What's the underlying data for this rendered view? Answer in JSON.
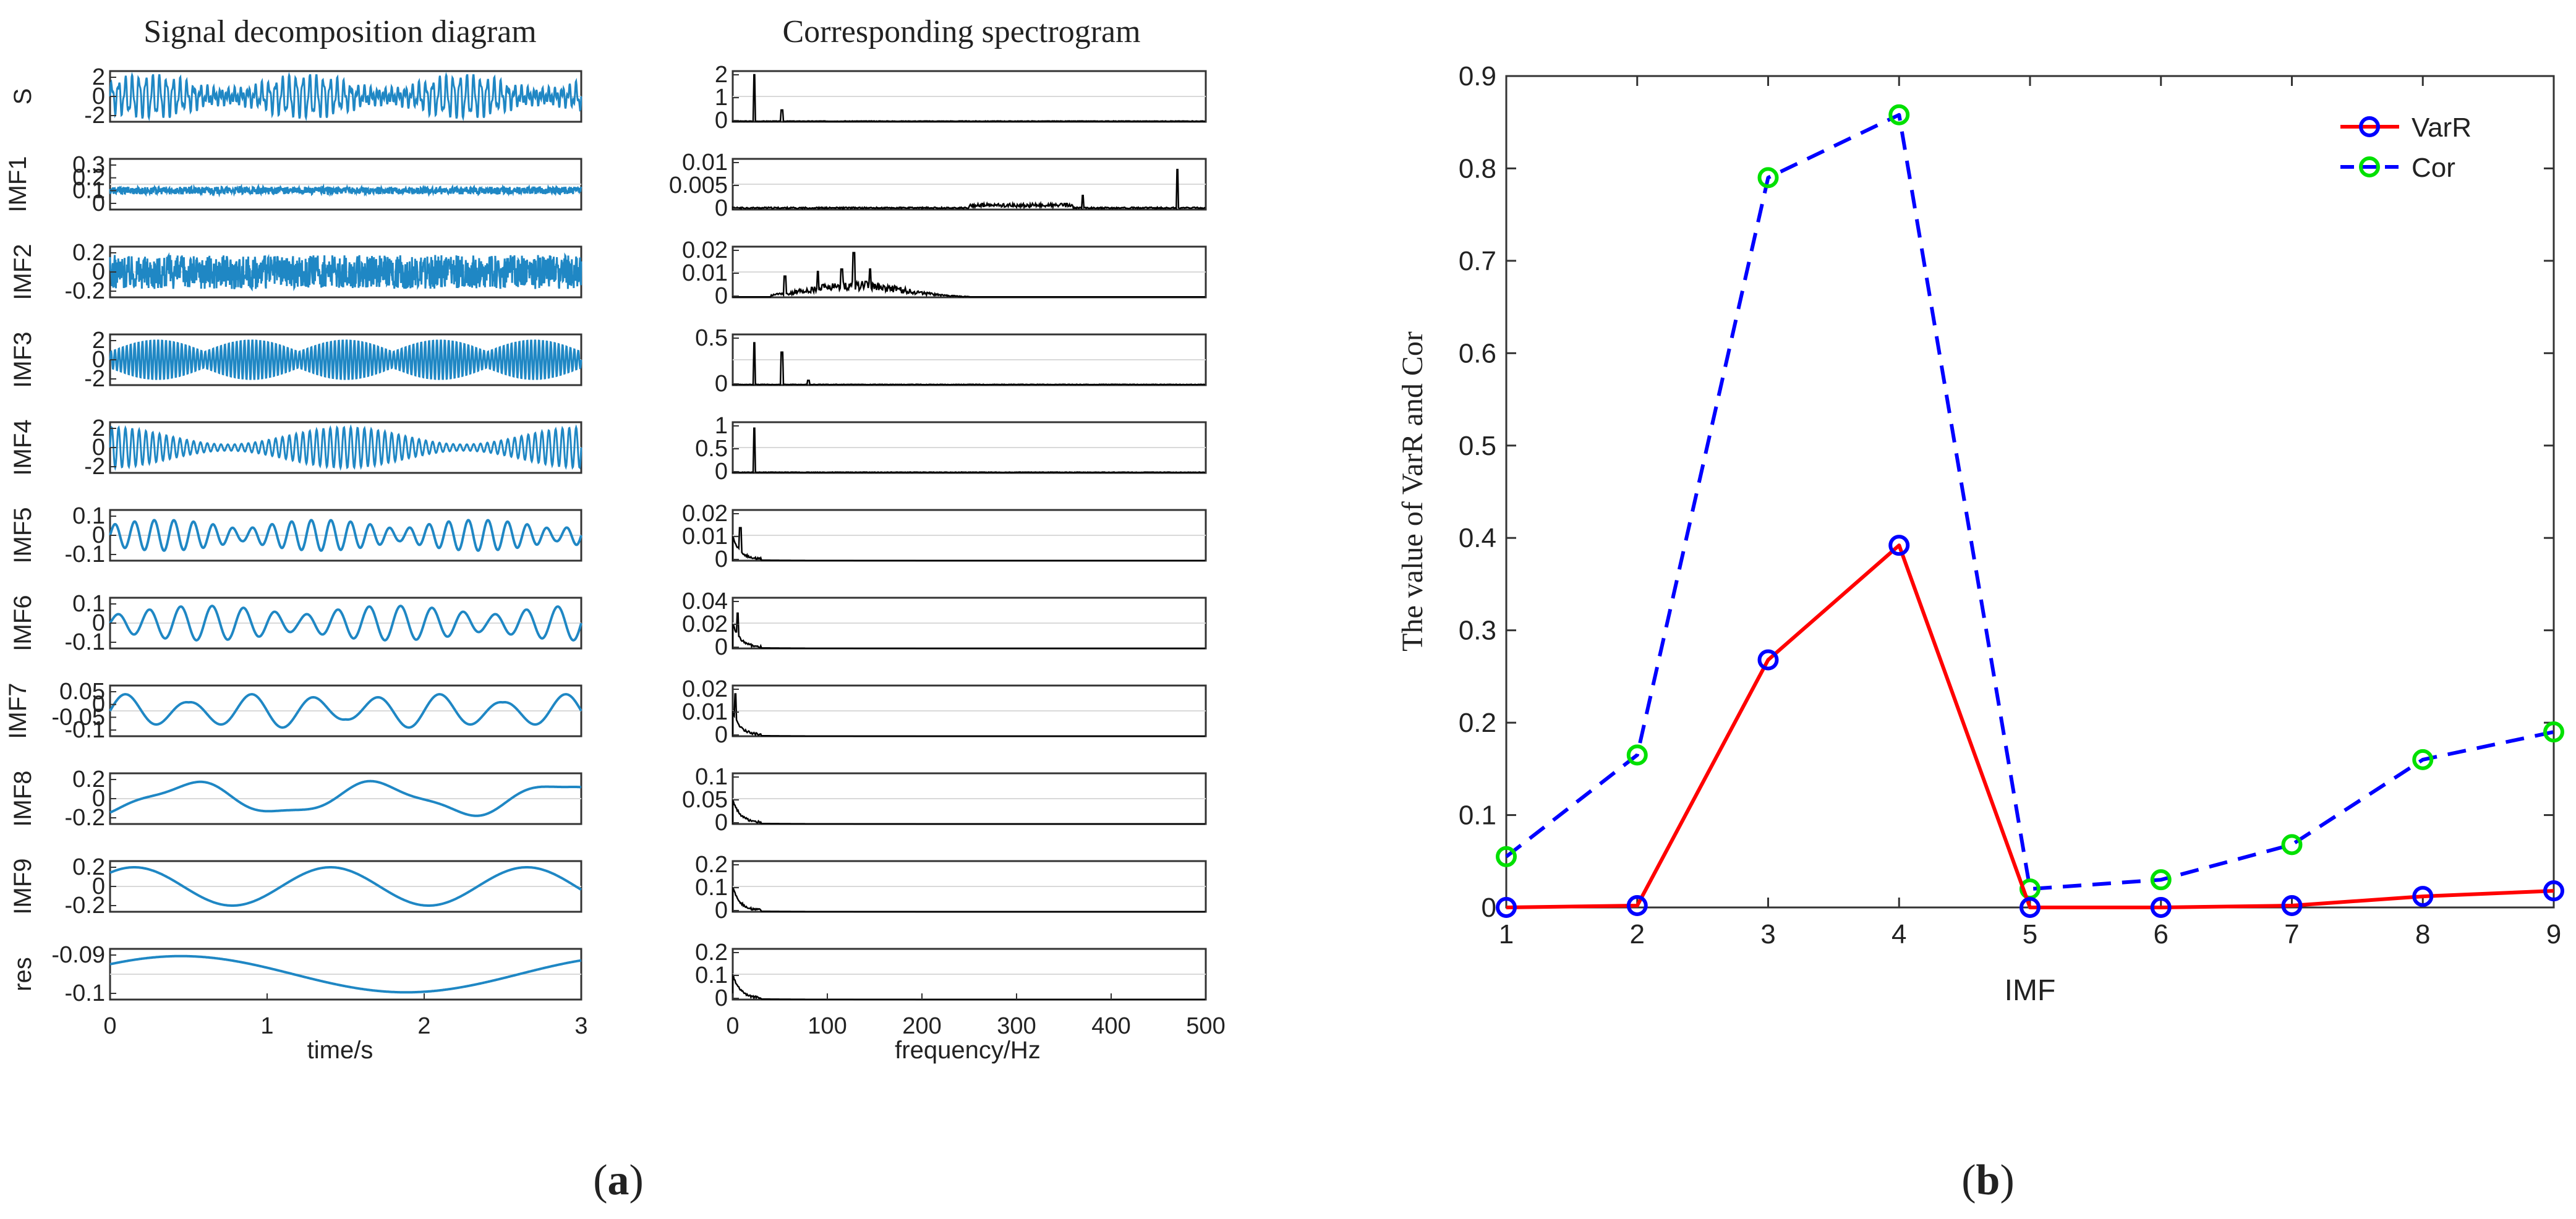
{
  "chart_data": [
    {
      "id": "a",
      "type": "line",
      "panel_label": "(a)",
      "panel_letter": "a",
      "left_title": "Signal decomposition diagram",
      "right_title": "Corresponding spectrogram",
      "time_xlabel": "time/s",
      "freq_xlabel": "frequency/Hz",
      "time_xlim": [
        0,
        3
      ],
      "time_xticks": [
        "0",
        "1",
        "2",
        "3"
      ],
      "freq_xlim": [
        0,
        500
      ],
      "freq_xticks": [
        "0",
        "100",
        "200",
        "300",
        "400",
        "500"
      ],
      "rows": [
        {
          "name": "S",
          "yticks": [
            "2",
            "0",
            "-2"
          ],
          "spec_yticks": [
            "2",
            "1",
            "0"
          ],
          "spec_peaks": [
            [
              23,
              1.0
            ],
            [
              52,
              0.25
            ]
          ],
          "spec_max": 2
        },
        {
          "name": "IMF1",
          "yticks": [
            "0.3",
            "0.2",
            "0.1",
            "0"
          ],
          "spec_yticks": [
            "0.01",
            "0.005",
            "0"
          ],
          "spec_peaks": [
            [
              370,
              0.3
            ],
            [
              470,
              0.85
            ]
          ],
          "spec_max": 0.01
        },
        {
          "name": "IMF2",
          "yticks": [
            "0.2",
            "0",
            "-0.2"
          ],
          "spec_yticks": [
            "0.02",
            "0.01",
            "0"
          ],
          "spec_peaks": [
            [
              55,
              0.45
            ],
            [
              90,
              0.55
            ],
            [
              115,
              0.6
            ],
            [
              128,
              0.95
            ],
            [
              145,
              0.6
            ]
          ],
          "spec_max": 0.02
        },
        {
          "name": "IMF3",
          "yticks": [
            "2",
            "0",
            "-2"
          ],
          "spec_yticks": [
            "0.5",
            "0"
          ],
          "spec_peaks": [
            [
              23,
              0.9
            ],
            [
              52,
              0.7
            ],
            [
              80,
              0.1
            ]
          ],
          "spec_max": 0.7
        },
        {
          "name": "IMF4",
          "yticks": [
            "2",
            "0",
            "-2"
          ],
          "spec_yticks": [
            "1",
            "0.5",
            "0"
          ],
          "spec_peaks": [
            [
              23,
              0.95
            ]
          ],
          "spec_max": 1.2
        },
        {
          "name": "IMF5",
          "yticks": [
            "0.1",
            "0",
            "-0.1"
          ],
          "spec_yticks": [
            "0.02",
            "0.01",
            "0"
          ],
          "spec_peaks": [
            [
              8,
              0.7
            ]
          ],
          "spec_max": 0.02
        },
        {
          "name": "IMF6",
          "yticks": [
            "0.1",
            "0",
            "-0.1"
          ],
          "spec_yticks": [
            "0.04",
            "0.02",
            "0"
          ],
          "spec_peaks": [
            [
              5,
              0.75
            ]
          ],
          "spec_max": 0.04
        },
        {
          "name": "IMF7",
          "yticks": [
            "0.05",
            "0",
            "-0.05",
            "-0.1"
          ],
          "spec_yticks": [
            "0.02",
            "0.01",
            "0"
          ],
          "spec_peaks": [
            [
              3,
              0.9
            ]
          ],
          "spec_max": 0.02
        },
        {
          "name": "IMF8",
          "yticks": [
            "0.2",
            "0",
            "-0.2"
          ],
          "spec_yticks": [
            "0.1",
            "0.05",
            "0"
          ],
          "spec_peaks": [
            [
              1,
              0.3
            ]
          ],
          "spec_max": 0.1
        },
        {
          "name": "IMF9",
          "yticks": [
            "0.2",
            "0",
            "-0.2"
          ],
          "spec_yticks": [
            "0.2",
            "0.1",
            "0"
          ],
          "spec_peaks": [
            [
              1,
              0.1
            ]
          ],
          "spec_max": 0.2
        },
        {
          "name": "res",
          "yticks": [
            "-0.09",
            "-0.1"
          ],
          "spec_yticks": [
            "0.2",
            "0.1",
            "0"
          ],
          "spec_peaks": [
            [
              1,
              0.05
            ]
          ],
          "spec_max": 0.2
        }
      ]
    },
    {
      "id": "b",
      "type": "line",
      "panel_label": "(b)",
      "panel_letter": "b",
      "xlabel": "IMF",
      "ylabel": "The value of VarR and Cor",
      "x": [
        1,
        2,
        3,
        4,
        5,
        6,
        7,
        8,
        9
      ],
      "xticks": [
        "1",
        "2",
        "3",
        "4",
        "5",
        "6",
        "7",
        "8",
        "9"
      ],
      "xlim": [
        1,
        9
      ],
      "ylim": [
        0,
        0.9
      ],
      "yticks": [
        "0",
        "0.1",
        "0.2",
        "0.3",
        "0.4",
        "0.5",
        "0.6",
        "0.7",
        "0.8",
        "0.9"
      ],
      "legend_position": "top-right",
      "series": [
        {
          "name": "VarR",
          "values": [
            0.0,
            0.002,
            0.268,
            0.392,
            0.0,
            0.0,
            0.002,
            0.012,
            0.018
          ],
          "line_color": "#ff0000",
          "marker_color": "#0000ff",
          "dash": "solid"
        },
        {
          "name": "Cor",
          "values": [
            0.055,
            0.165,
            0.79,
            0.858,
            0.02,
            0.03,
            0.068,
            0.16,
            0.19
          ],
          "line_color": "#0000ff",
          "marker_color": "#00e000",
          "dash": "dashed"
        }
      ]
    }
  ],
  "colors": {
    "signal": "#1f87c4",
    "spectrum": "#000000",
    "axis": "#333333",
    "grid": "#d9d9d9"
  }
}
